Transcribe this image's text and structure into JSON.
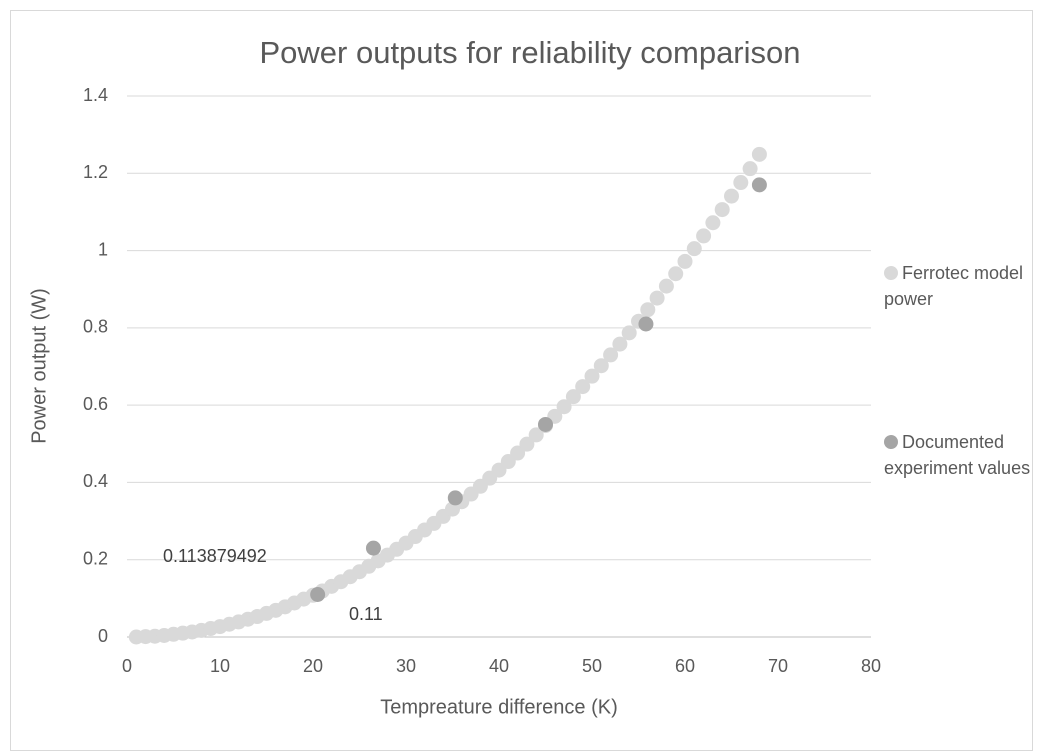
{
  "chart_data": {
    "type": "scatter",
    "title": "Power outputs for reliability comparison",
    "x_label": "Tempreature difference (K)",
    "y_label": "Power output (W)",
    "xlim": [
      0,
      80
    ],
    "xticks": [
      0,
      10,
      20,
      30,
      40,
      50,
      60,
      70,
      80
    ],
    "ylim": [
      0,
      1.4
    ],
    "yticks": [
      0,
      0.2,
      0.4,
      0.6,
      0.8,
      1,
      1.2,
      1.4
    ],
    "grid": true,
    "legend": "right",
    "series": [
      {
        "name": "Ferrotec model power",
        "color": "#d9d9d9",
        "x": [
          1,
          2,
          3,
          4,
          5,
          6,
          7,
          8,
          9,
          10,
          11,
          12,
          13,
          14,
          15,
          16,
          17,
          18,
          19,
          20,
          21,
          22,
          23,
          24,
          25,
          26,
          27,
          28,
          29,
          30,
          31,
          32,
          33,
          34,
          35,
          36,
          37,
          38,
          39,
          40,
          41,
          42,
          43,
          44,
          45,
          46,
          47,
          48,
          49,
          50,
          51,
          52,
          53,
          54,
          55,
          56,
          57,
          58,
          59,
          60,
          61,
          62,
          63,
          64,
          65,
          66,
          67,
          68
        ],
        "values": [
          0.0,
          0.001,
          0.002,
          0.004,
          0.007,
          0.01,
          0.013,
          0.017,
          0.022,
          0.027,
          0.033,
          0.039,
          0.046,
          0.053,
          0.061,
          0.069,
          0.078,
          0.088,
          0.098,
          0.108,
          0.119,
          0.131,
          0.143,
          0.156,
          0.169,
          0.183,
          0.197,
          0.212,
          0.227,
          0.243,
          0.26,
          0.277,
          0.294,
          0.312,
          0.331,
          0.35,
          0.37,
          0.39,
          0.411,
          0.432,
          0.454,
          0.476,
          0.499,
          0.523,
          0.547,
          0.571,
          0.596,
          0.622,
          0.648,
          0.675,
          0.702,
          0.73,
          0.758,
          0.787,
          0.817,
          0.847,
          0.877,
          0.908,
          0.94,
          0.972,
          1.005,
          1.038,
          1.072,
          1.106,
          1.141,
          1.176,
          1.212,
          1.249
        ]
      },
      {
        "name": "Documented experiment values",
        "color": "#a5a5a5",
        "x": [
          20.5,
          26.5,
          35.3,
          45,
          55.8,
          68
        ],
        "values": [
          0.11,
          0.23,
          0.36,
          0.55,
          0.81,
          1.17
        ]
      }
    ],
    "annotations": [
      "0.113879492",
      "0.11"
    ]
  }
}
